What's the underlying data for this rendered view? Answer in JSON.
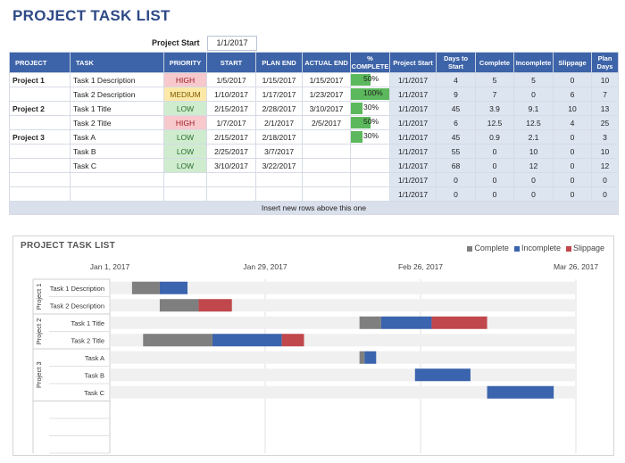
{
  "page_title": "PROJECT TASK LIST",
  "project_start": {
    "label": "Project Start",
    "value": "1/1/2017"
  },
  "table": {
    "headers": [
      "PROJECT",
      "TASK",
      "PRIORITY",
      "START",
      "PLAN END",
      "ACTUAL END",
      "% COMPLETE",
      "Project Start",
      "Days to Start",
      "Complete",
      "Incomplete",
      "Slippage",
      "Plan Days"
    ],
    "rows": [
      {
        "project": "Project 1",
        "task": "Task 1 Description",
        "priority": "HIGH",
        "start": "1/5/2017",
        "plan_end": "1/15/2017",
        "actual_end": "1/15/2017",
        "pct": "50%",
        "pct_val": 0.5,
        "pstart": "1/1/2017",
        "days": "4",
        "complete": "5",
        "incomplete": "5",
        "slip": "0",
        "plan": "10"
      },
      {
        "project": "",
        "task": "Task 2 Description",
        "priority": "MEDIUM",
        "start": "1/10/2017",
        "plan_end": "1/17/2017",
        "actual_end": "1/23/2017",
        "pct": "100%",
        "pct_val": 1.0,
        "pstart": "1/1/2017",
        "days": "9",
        "complete": "7",
        "incomplete": "0",
        "slip": "6",
        "plan": "7"
      },
      {
        "project": "Project 2",
        "task": "Task 1 Title",
        "priority": "LOW",
        "start": "2/15/2017",
        "plan_end": "2/28/2017",
        "actual_end": "3/10/2017",
        "pct": "30%",
        "pct_val": 0.3,
        "pstart": "1/1/2017",
        "days": "45",
        "complete": "3.9",
        "incomplete": "9.1",
        "slip": "10",
        "plan": "13"
      },
      {
        "project": "",
        "task": "Task 2 Title",
        "priority": "HIGH",
        "start": "1/7/2017",
        "plan_end": "2/1/2017",
        "actual_end": "2/5/2017",
        "pct": "50%",
        "pct_val": 0.5,
        "pstart": "1/1/2017",
        "days": "6",
        "complete": "12.5",
        "incomplete": "12.5",
        "slip": "4",
        "plan": "25"
      },
      {
        "project": "Project 3",
        "task": "Task A",
        "priority": "LOW",
        "start": "2/15/2017",
        "plan_end": "2/18/2017",
        "actual_end": "",
        "pct": "30%",
        "pct_val": 0.3,
        "pstart": "1/1/2017",
        "days": "45",
        "complete": "0.9",
        "incomplete": "2.1",
        "slip": "0",
        "plan": "3"
      },
      {
        "project": "",
        "task": "Task B",
        "priority": "LOW",
        "start": "2/25/2017",
        "plan_end": "3/7/2017",
        "actual_end": "",
        "pct": "",
        "pct_val": 0,
        "pstart": "1/1/2017",
        "days": "55",
        "complete": "0",
        "incomplete": "10",
        "slip": "0",
        "plan": "10"
      },
      {
        "project": "",
        "task": "Task C",
        "priority": "LOW",
        "start": "3/10/2017",
        "plan_end": "3/22/2017",
        "actual_end": "",
        "pct": "",
        "pct_val": 0,
        "pstart": "1/1/2017",
        "days": "68",
        "complete": "0",
        "incomplete": "12",
        "slip": "0",
        "plan": "12"
      },
      {
        "project": "",
        "task": "",
        "priority": "",
        "start": "",
        "plan_end": "",
        "actual_end": "",
        "pct": "",
        "pct_val": 0,
        "pstart": "1/1/2017",
        "days": "0",
        "complete": "0",
        "incomplete": "0",
        "slip": "0",
        "plan": "0"
      },
      {
        "project": "",
        "task": "",
        "priority": "",
        "start": "",
        "plan_end": "",
        "actual_end": "",
        "pct": "",
        "pct_val": 0,
        "pstart": "1/1/2017",
        "days": "0",
        "complete": "0",
        "incomplete": "0",
        "slip": "0",
        "plan": "0"
      }
    ],
    "footer_note": "Insert new rows above this one"
  },
  "colors": {
    "header": "#3d63a8",
    "complete": "#7f7f7f",
    "incomplete": "#3a64ad",
    "slippage": "#c0474c",
    "base": "#f0f0f0"
  },
  "chart_data": {
    "type": "bar",
    "title": "PROJECT TASK LIST",
    "stacked": true,
    "orientation": "horizontal",
    "x_ticks": [
      "Jan 1, 2017",
      "Jan 29, 2017",
      "Feb 26, 2017",
      "Mar 26, 2017"
    ],
    "x_range": [
      0,
      84
    ],
    "groups": [
      {
        "name": "Project 1",
        "tasks": [
          "Task 1 Description",
          "Task 2 Description"
        ]
      },
      {
        "name": "Project 2",
        "tasks": [
          "Task 1 Title",
          "Task 2 Title"
        ]
      },
      {
        "name": "Project 3",
        "tasks": [
          "Task A",
          "Task B",
          "Task C"
        ]
      }
    ],
    "categories": [
      "Task 1 Description",
      "Task 2 Description",
      "Task 1 Title",
      "Task 2 Title",
      "Task A",
      "Task B",
      "Task C"
    ],
    "series": [
      {
        "name": "Days to Start",
        "values": [
          4,
          9,
          45,
          6,
          45,
          55,
          68
        ]
      },
      {
        "name": "Complete",
        "values": [
          5,
          7,
          3.9,
          12.5,
          0.9,
          0,
          0
        ]
      },
      {
        "name": "Incomplete",
        "values": [
          5,
          0,
          9.1,
          12.5,
          2.1,
          10,
          12
        ]
      },
      {
        "name": "Slippage",
        "values": [
          0,
          6,
          10,
          4,
          0,
          0,
          0
        ]
      }
    ],
    "legend": [
      "Complete",
      "Incomplete",
      "Slippage"
    ],
    "legend_position": "top-right",
    "grid": true
  }
}
